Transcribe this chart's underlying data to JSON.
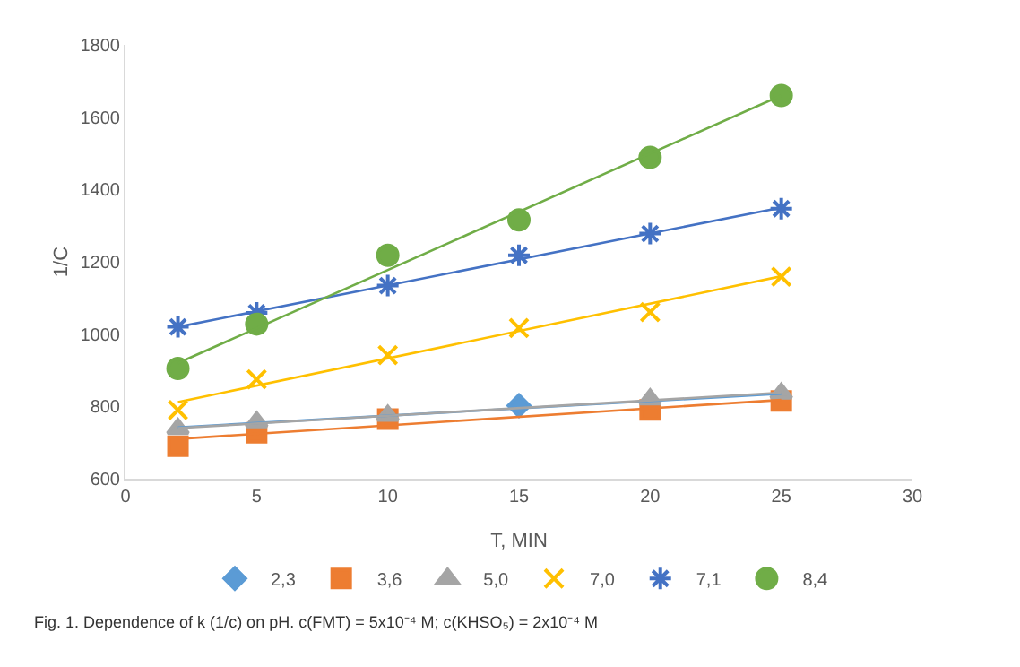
{
  "chart_data": {
    "type": "scatter",
    "xlabel": "T, MIN",
    "ylabel": "1/C",
    "x": [
      2,
      5,
      10,
      15,
      20,
      25
    ],
    "xlim": [
      0,
      30
    ],
    "xticks": [
      0,
      5,
      10,
      15,
      20,
      25,
      30
    ],
    "ylim": [
      600,
      1800
    ],
    "yticks": [
      600,
      800,
      1000,
      1200,
      1400,
      1600,
      1800
    ],
    "legend": "bottom",
    "series": [
      {
        "name": "2,3",
        "color": "#5b9bd5",
        "marker": "diamond",
        "values": [
          null,
          null,
          null,
          802,
          null,
          null
        ]
      },
      {
        "name": "3,6",
        "color": "#ed7d31",
        "marker": "square",
        "values": [
          690,
          727,
          765,
          null,
          790,
          815
        ]
      },
      {
        "name": "5,0",
        "color": "#a5a5a5",
        "marker": "triangle",
        "values": [
          738,
          757,
          775,
          null,
          820,
          836
        ]
      },
      {
        "name": "7,0",
        "color": "#ffc000",
        "marker": "cross",
        "values": [
          790,
          875,
          942,
          1017,
          1061,
          1159
        ]
      },
      {
        "name": "7,1",
        "color": "#4472c4",
        "values": [
          1020,
          1059,
          1134,
          1218,
          1278,
          1347
        ]
      },
      {
        "name": "8,4",
        "color": "#70ad47",
        "marker": "circle",
        "values": [
          905,
          1028,
          1218,
          1316,
          1489,
          1660
        ]
      },
      {
        "type": "line",
        "color": "#5b9bd5",
        "values": [
          742,
          null,
          null,
          null,
          null,
          835
        ]
      },
      {
        "type": "line",
        "color": "#ed7d31",
        "values": [
          710,
          null,
          null,
          null,
          null,
          818
        ]
      },
      {
        "type": "line",
        "color": "#a5a5a5",
        "values": [
          740,
          null,
          null,
          null,
          null,
          838
        ]
      },
      {
        "type": "line",
        "color": "#ffc000",
        "values": [
          812,
          null,
          null,
          null,
          null,
          1160
        ]
      },
      {
        "type": "line",
        "color": "#4472c4",
        "values": [
          1020,
          null,
          null,
          null,
          null,
          1350
        ]
      },
      {
        "type": "line",
        "color": "#70ad47",
        "values": [
          920,
          null,
          null,
          null,
          null,
          1660
        ]
      }
    ],
    "annotations": [
      "Fig. 1. Dependence of k (1/c) on pH. c(FMT) = 5x10⁻⁴ M; c(KHSO₅) = 2x10⁻⁴ M"
    ]
  }
}
